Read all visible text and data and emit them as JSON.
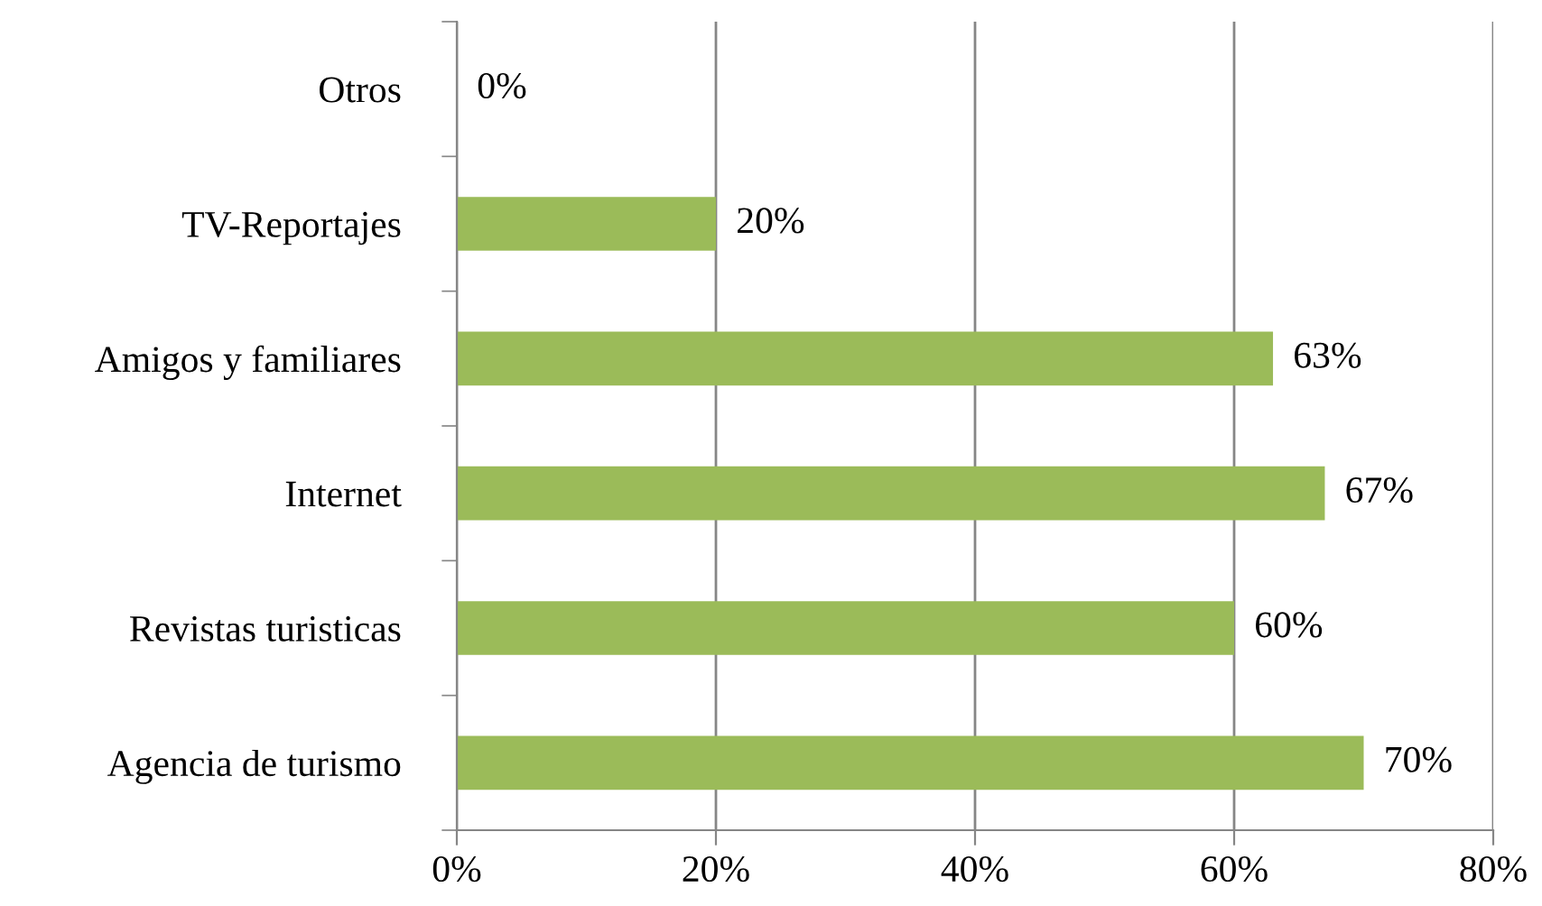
{
  "chart_data": {
    "type": "bar",
    "orientation": "horizontal",
    "categories": [
      "Otros",
      "TV-Reportajes",
      "Amigos y familiares",
      "Internet",
      "Revistas turisticas",
      "Agencia de turismo"
    ],
    "values": [
      0,
      20,
      63,
      67,
      60,
      70
    ],
    "value_labels": [
      "0%",
      "20%",
      "63%",
      "67%",
      "60%",
      "70%"
    ],
    "color": "#9bbb59",
    "xlim": [
      0,
      80
    ],
    "xticks": [
      {
        "value": 0,
        "label": "0%"
      },
      {
        "value": 20,
        "label": "20%"
      },
      {
        "value": 40,
        "label": "40%"
      },
      {
        "value": 60,
        "label": "60%"
      },
      {
        "value": 80,
        "label": "80%"
      }
    ],
    "grid": "x",
    "legend": false
  }
}
